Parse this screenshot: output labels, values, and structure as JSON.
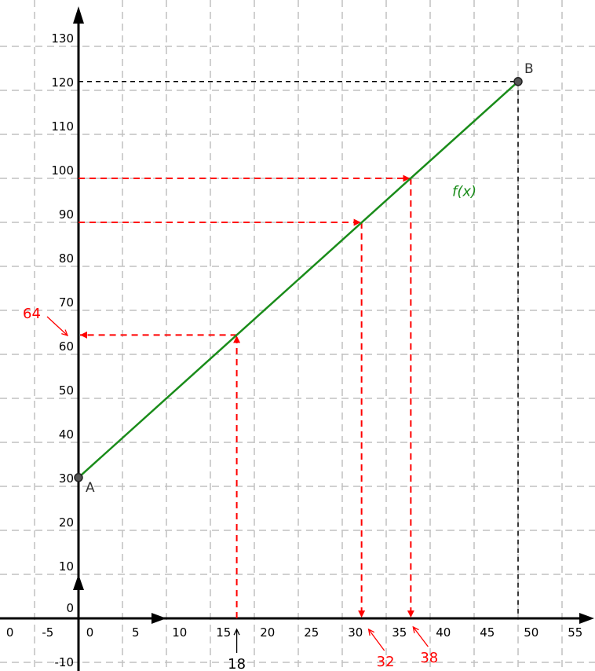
{
  "chart_data": {
    "type": "line",
    "title": "",
    "xlabel": "",
    "ylabel": "",
    "xlim": [
      -8,
      57
    ],
    "ylim": [
      -12,
      137
    ],
    "grid": true,
    "x_ticks": [
      "0",
      "-5",
      "0",
      "5",
      "10",
      "15",
      "20",
      "25",
      "30",
      "35",
      "40",
      "45",
      "50",
      "55"
    ],
    "y_ticks": [
      0,
      10,
      20,
      30,
      40,
      50,
      60,
      70,
      80,
      90,
      100,
      110,
      120,
      130,
      -10
    ],
    "series": [
      {
        "name": "f(x)",
        "x": [
          0,
          50
        ],
        "y": [
          32,
          122
        ],
        "color": "#1a8c1a"
      }
    ],
    "points": [
      {
        "label": "A",
        "x": 0,
        "y": 32
      },
      {
        "label": "B",
        "x": 50,
        "y": 122
      }
    ],
    "annotations": [
      {
        "label": "18",
        "kind": "x-input",
        "x": 18,
        "y": 64.4,
        "color": "#000000"
      },
      {
        "label": "64",
        "kind": "y-result",
        "x": 18,
        "y": 64.4,
        "color": "#ff0000"
      },
      {
        "label": "32",
        "kind": "x-result",
        "x": 32.2,
        "y": 90,
        "color": "#ff0000"
      },
      {
        "label": "38",
        "kind": "x-result",
        "x": 37.8,
        "y": 100,
        "color": "#ff0000"
      }
    ],
    "colors": {
      "line": "#1a8c1a",
      "construction": "#ff0000",
      "guide": "#000000",
      "grid": "#c0c0c0",
      "point_fill": "#555555"
    }
  }
}
